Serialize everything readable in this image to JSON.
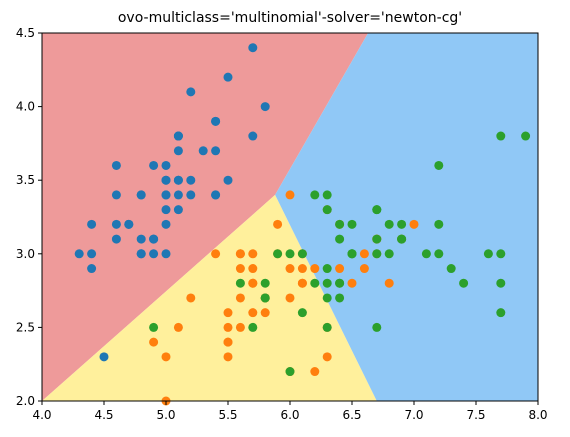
{
  "chart_data": {
    "type": "scatter",
    "title": "ovo-multiclass='multinomial'-solver='newton-cg'",
    "xlabel": "",
    "ylabel": "",
    "xlim": [
      4.0,
      8.0
    ],
    "ylim": [
      2.0,
      4.5
    ],
    "x_ticks": [
      "4.0",
      "4.5",
      "5.0",
      "5.5",
      "6.0",
      "6.5",
      "7.0",
      "7.5",
      "8.0"
    ],
    "y_ticks": [
      "2.0",
      "2.5",
      "3.0",
      "3.5",
      "4.0",
      "4.5"
    ],
    "grid": false,
    "regions": [
      {
        "color": "#ee9a9a",
        "polygon": [
          [
            4.0,
            2.0
          ],
          [
            4.0,
            4.5
          ],
          [
            6.63,
            4.5
          ],
          [
            5.88,
            3.4
          ]
        ]
      },
      {
        "color": "#fff09c",
        "polygon": [
          [
            4.0,
            2.0
          ],
          [
            5.88,
            3.4
          ],
          [
            6.7,
            2.0
          ]
        ]
      },
      {
        "color": "#90c8f6",
        "polygon": [
          [
            5.88,
            3.4
          ],
          [
            6.63,
            4.5
          ],
          [
            8.0,
            4.5
          ],
          [
            8.0,
            2.0
          ],
          [
            6.7,
            2.0
          ]
        ]
      }
    ],
    "series": [
      {
        "color": "#1f77b4",
        "points": [
          [
            5.1,
            3.5
          ],
          [
            4.9,
            3.0
          ],
          [
            4.7,
            3.2
          ],
          [
            4.6,
            3.1
          ],
          [
            5.0,
            3.6
          ],
          [
            5.4,
            3.9
          ],
          [
            4.6,
            3.4
          ],
          [
            5.0,
            3.4
          ],
          [
            4.4,
            2.9
          ],
          [
            4.9,
            3.1
          ],
          [
            5.4,
            3.7
          ],
          [
            4.8,
            3.4
          ],
          [
            4.8,
            3.0
          ],
          [
            4.3,
            3.0
          ],
          [
            5.8,
            4.0
          ],
          [
            5.7,
            4.4
          ],
          [
            5.4,
            3.9
          ],
          [
            5.1,
            3.5
          ],
          [
            5.7,
            3.8
          ],
          [
            5.1,
            3.8
          ],
          [
            5.4,
            3.4
          ],
          [
            5.1,
            3.7
          ],
          [
            4.6,
            3.6
          ],
          [
            5.1,
            3.3
          ],
          [
            4.8,
            3.4
          ],
          [
            5.0,
            3.0
          ],
          [
            5.0,
            3.4
          ],
          [
            5.2,
            3.5
          ],
          [
            5.2,
            3.4
          ],
          [
            4.7,
            3.2
          ],
          [
            4.8,
            3.1
          ],
          [
            5.4,
            3.4
          ],
          [
            5.2,
            4.1
          ],
          [
            5.5,
            4.2
          ],
          [
            4.9,
            3.1
          ],
          [
            5.0,
            3.2
          ],
          [
            5.5,
            3.5
          ],
          [
            4.9,
            3.6
          ],
          [
            4.4,
            3.0
          ],
          [
            5.1,
            3.4
          ],
          [
            5.0,
            3.5
          ],
          [
            4.5,
            2.3
          ],
          [
            4.4,
            3.2
          ],
          [
            5.0,
            3.5
          ],
          [
            5.1,
            3.8
          ],
          [
            4.8,
            3.0
          ],
          [
            5.1,
            3.8
          ],
          [
            4.6,
            3.2
          ],
          [
            5.3,
            3.7
          ],
          [
            5.0,
            3.3
          ]
        ]
      },
      {
        "color": "#ff7f0e",
        "points": [
          [
            7.0,
            3.2
          ],
          [
            6.4,
            3.2
          ],
          [
            6.9,
            3.1
          ],
          [
            5.5,
            2.3
          ],
          [
            6.5,
            2.8
          ],
          [
            5.7,
            2.8
          ],
          [
            6.3,
            3.3
          ],
          [
            4.9,
            2.4
          ],
          [
            6.6,
            2.9
          ],
          [
            5.2,
            2.7
          ],
          [
            5.0,
            2.0
          ],
          [
            5.9,
            3.0
          ],
          [
            6.0,
            2.2
          ],
          [
            6.1,
            2.9
          ],
          [
            5.6,
            2.9
          ],
          [
            6.7,
            3.1
          ],
          [
            5.6,
            3.0
          ],
          [
            5.8,
            2.7
          ],
          [
            6.2,
            2.2
          ],
          [
            5.6,
            2.5
          ],
          [
            5.9,
            3.2
          ],
          [
            6.1,
            2.8
          ],
          [
            6.3,
            2.5
          ],
          [
            6.1,
            2.8
          ],
          [
            6.4,
            2.9
          ],
          [
            6.6,
            3.0
          ],
          [
            6.8,
            2.8
          ],
          [
            6.7,
            3.0
          ],
          [
            6.0,
            2.9
          ],
          [
            5.7,
            2.6
          ],
          [
            5.5,
            2.4
          ],
          [
            5.5,
            2.4
          ],
          [
            5.8,
            2.7
          ],
          [
            6.0,
            2.7
          ],
          [
            5.4,
            3.0
          ],
          [
            6.0,
            3.4
          ],
          [
            6.7,
            3.1
          ],
          [
            6.3,
            2.3
          ],
          [
            5.6,
            3.0
          ],
          [
            5.5,
            2.5
          ],
          [
            5.5,
            2.6
          ],
          [
            6.1,
            3.0
          ],
          [
            5.8,
            2.6
          ],
          [
            5.0,
            2.3
          ],
          [
            5.6,
            2.7
          ],
          [
            5.7,
            3.0
          ],
          [
            5.7,
            2.9
          ],
          [
            6.2,
            2.9
          ],
          [
            5.1,
            2.5
          ],
          [
            5.7,
            2.8
          ]
        ]
      },
      {
        "color": "#2ca02c",
        "points": [
          [
            6.3,
            3.3
          ],
          [
            5.8,
            2.7
          ],
          [
            7.1,
            3.0
          ],
          [
            6.3,
            2.9
          ],
          [
            6.5,
            3.0
          ],
          [
            7.6,
            3.0
          ],
          [
            4.9,
            2.5
          ],
          [
            7.3,
            2.9
          ],
          [
            6.7,
            2.5
          ],
          [
            7.2,
            3.6
          ],
          [
            6.5,
            3.2
          ],
          [
            6.4,
            2.7
          ],
          [
            6.8,
            3.0
          ],
          [
            5.7,
            2.5
          ],
          [
            5.8,
            2.8
          ],
          [
            6.4,
            3.2
          ],
          [
            6.5,
            3.0
          ],
          [
            7.7,
            3.8
          ],
          [
            7.7,
            2.6
          ],
          [
            6.0,
            2.2
          ],
          [
            6.9,
            3.2
          ],
          [
            5.6,
            2.8
          ],
          [
            7.7,
            2.8
          ],
          [
            6.3,
            2.7
          ],
          [
            6.7,
            3.3
          ],
          [
            7.2,
            3.2
          ],
          [
            6.2,
            2.8
          ],
          [
            6.1,
            3.0
          ],
          [
            6.4,
            2.8
          ],
          [
            7.2,
            3.0
          ],
          [
            7.4,
            2.8
          ],
          [
            7.9,
            3.8
          ],
          [
            6.4,
            2.8
          ],
          [
            6.3,
            2.8
          ],
          [
            6.1,
            2.6
          ],
          [
            7.7,
            3.0
          ],
          [
            6.3,
            3.4
          ],
          [
            6.4,
            3.1
          ],
          [
            6.0,
            3.0
          ],
          [
            6.9,
            3.1
          ],
          [
            6.7,
            3.1
          ],
          [
            6.9,
            3.1
          ],
          [
            5.8,
            2.7
          ],
          [
            6.8,
            3.2
          ],
          [
            6.7,
            3.3
          ],
          [
            6.7,
            3.0
          ],
          [
            6.3,
            2.5
          ],
          [
            6.5,
            3.0
          ],
          [
            6.2,
            3.4
          ],
          [
            5.9,
            3.0
          ]
        ]
      }
    ]
  }
}
